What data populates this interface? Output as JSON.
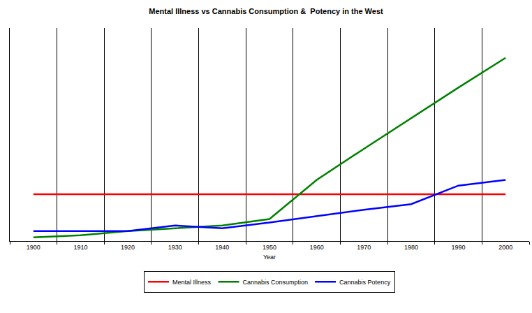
{
  "chart_data": {
    "type": "line",
    "title": "Mental Illness vs Cannabis Consumption &  Potency in the West",
    "xlabel": "Year",
    "categories": [
      "1900",
      "1910",
      "1920",
      "1930",
      "1940",
      "1950",
      "1960",
      "1970",
      "1980",
      "1990",
      "2000"
    ],
    "series": [
      {
        "name": "Mental Illness",
        "color": "#ff0000",
        "values": [
          22,
          22,
          22,
          22,
          22,
          22,
          22,
          22,
          22,
          22,
          22
        ]
      },
      {
        "name": "Cannabis Consumption",
        "color": "#008000",
        "values": [
          1.7,
          2.7,
          4.7,
          6,
          7.3,
          10.3,
          28.7,
          43.3,
          57.7,
          72,
          86
        ]
      },
      {
        "name": "Cannabis Potency",
        "color": "#0000ff",
        "values": [
          4.7,
          4.7,
          4.7,
          7.3,
          6,
          8.7,
          11.7,
          14.7,
          17.3,
          26,
          28.7
        ]
      }
    ],
    "ylim": [
      0,
      100
    ],
    "grid": true,
    "legend": "bottom",
    "tick_labels": "x"
  }
}
